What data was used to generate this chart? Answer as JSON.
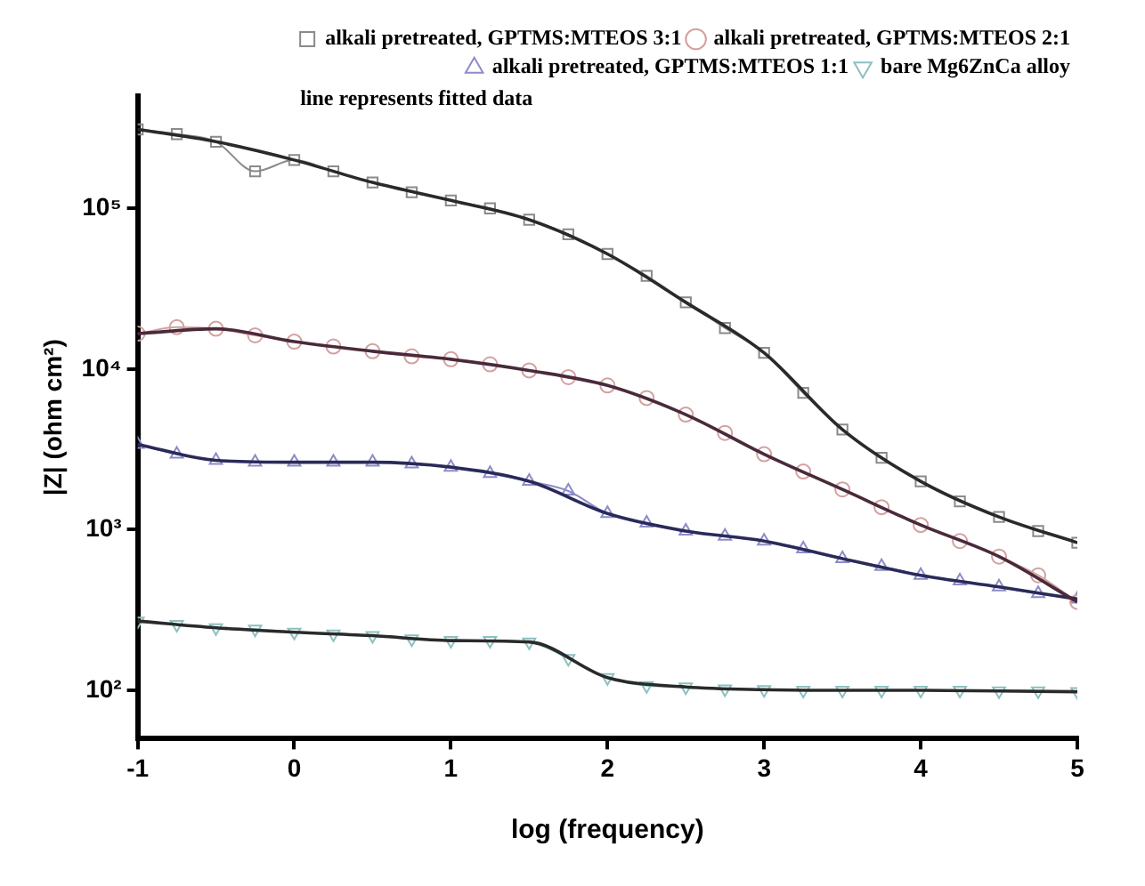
{
  "chart_data": {
    "type": "line",
    "xlabel": "log (frequency)",
    "ylabel": "|Z| (ohm cm²)",
    "log": "y",
    "xlim": [
      -1,
      5
    ],
    "xticks": [
      -1,
      0,
      1,
      2,
      3,
      4,
      5
    ],
    "ylim": [
      50,
      500000
    ],
    "yticks": [
      {
        "value": 100,
        "label": "10²"
      },
      {
        "value": 1000,
        "label": "10³"
      },
      {
        "value": 10000,
        "label": "10⁴"
      },
      {
        "value": 100000,
        "label": "10⁵"
      }
    ],
    "grid": false,
    "legend": "top right",
    "annotations": [
      "line represents fitted data"
    ],
    "series": [
      {
        "name": "alkali pretreated, GPTMS:MTEOS 3:1",
        "color": "#8a8a8a",
        "marker": "square",
        "x": [
          -1,
          -0.75,
          -0.5,
          -0.25,
          0,
          0.25,
          0.5,
          0.75,
          1,
          1.25,
          1.5,
          1.75,
          2,
          2.25,
          2.5,
          2.75,
          3,
          3.25,
          3.5,
          3.75,
          4,
          4.25,
          4.5,
          4.75,
          5
        ],
        "values": [
          310000,
          290000,
          260000,
          170000,
          200000,
          170000,
          145000,
          126000,
          112000,
          100000,
          85000,
          69000,
          52000,
          38000,
          26000,
          18000,
          12600,
          7100,
          4200,
          2800,
          2000,
          1500,
          1200,
          980,
          830
        ]
      },
      {
        "name": "alkali pretreated, GPTMS:MTEOS 2:1",
        "color": "#d4a0a0",
        "marker": "circle",
        "x": [
          -1,
          -0.75,
          -0.5,
          -0.25,
          0,
          0.25,
          0.5,
          0.75,
          1,
          1.25,
          1.5,
          1.75,
          2,
          2.25,
          2.5,
          2.75,
          3,
          3.25,
          3.5,
          3.75,
          4,
          4.25,
          4.5,
          4.75,
          5
        ],
        "values": [
          16600,
          18200,
          17800,
          16200,
          14800,
          13800,
          12900,
          12000,
          11500,
          10700,
          9800,
          8900,
          7900,
          6600,
          5200,
          4000,
          2950,
          2300,
          1780,
          1380,
          1070,
          850,
          680,
          520,
          355
        ]
      },
      {
        "name": "alkali pretreated, GPTMS:MTEOS 1:1",
        "color": "#8c8cc8",
        "marker": "triangle",
        "x": [
          -1,
          -0.75,
          -0.5,
          -0.25,
          0,
          0.25,
          0.5,
          0.75,
          1,
          1.25,
          1.5,
          1.75,
          2,
          2.25,
          2.5,
          2.75,
          3,
          3.25,
          3.5,
          3.75,
          4,
          4.25,
          4.5,
          4.75,
          5
        ],
        "values": [
          3400,
          2950,
          2700,
          2630,
          2630,
          2630,
          2630,
          2570,
          2450,
          2240,
          2000,
          1740,
          1260,
          1100,
          980,
          910,
          850,
          760,
          660,
          590,
          520,
          480,
          440,
          400,
          370
        ]
      },
      {
        "name": "bare Mg6ZnCa alloy",
        "color": "#8cc0c0",
        "marker": "triangle-down",
        "x": [
          -1,
          -0.75,
          -0.5,
          -0.25,
          0,
          0.25,
          0.5,
          0.75,
          1,
          1.25,
          1.5,
          1.75,
          2,
          2.25,
          2.5,
          2.75,
          3,
          3.25,
          3.5,
          3.75,
          4,
          4.25,
          4.5,
          4.75,
          5
        ],
        "values": [
          270,
          257,
          245,
          240,
          230,
          224,
          219,
          209,
          204,
          204,
          200,
          158,
          120,
          107,
          105,
          102,
          101,
          100,
          100,
          100,
          100,
          100,
          99,
          99,
          98
        ]
      },
      {
        "color": "#2a2a2a",
        "marker": "none",
        "x": [
          -1,
          -0.5,
          0,
          0.5,
          1,
          1.5,
          2,
          2.5,
          3,
          3.5,
          4,
          4.5,
          5
        ],
        "values": [
          310000,
          260000,
          200000,
          145000,
          112000,
          85000,
          52000,
          26000,
          12600,
          4200,
          2000,
          1200,
          830
        ]
      },
      {
        "color": "#4a2a3a",
        "marker": "none",
        "x": [
          -1,
          -0.5,
          0,
          0.5,
          1,
          1.5,
          2,
          2.5,
          3,
          3.5,
          4,
          4.5,
          5
        ],
        "values": [
          16600,
          17800,
          14800,
          12900,
          11500,
          9800,
          7900,
          5200,
          2950,
          1780,
          1070,
          680,
          355
        ]
      },
      {
        "color": "#2a2a5a",
        "marker": "none",
        "x": [
          -1,
          -0.5,
          0,
          0.5,
          1,
          1.5,
          2,
          2.5,
          3,
          3.5,
          4,
          4.5,
          5
        ],
        "values": [
          3400,
          2700,
          2630,
          2630,
          2450,
          2000,
          1260,
          980,
          850,
          660,
          520,
          440,
          370
        ]
      },
      {
        "color": "#2a2a2a",
        "marker": "none",
        "x": [
          -1,
          -0.5,
          0,
          0.5,
          1,
          1.5,
          2,
          2.5,
          3,
          3.5,
          4,
          4.5,
          5
        ],
        "values": [
          270,
          245,
          230,
          219,
          204,
          200,
          120,
          105,
          101,
          100,
          100,
          99,
          98
        ]
      }
    ]
  }
}
